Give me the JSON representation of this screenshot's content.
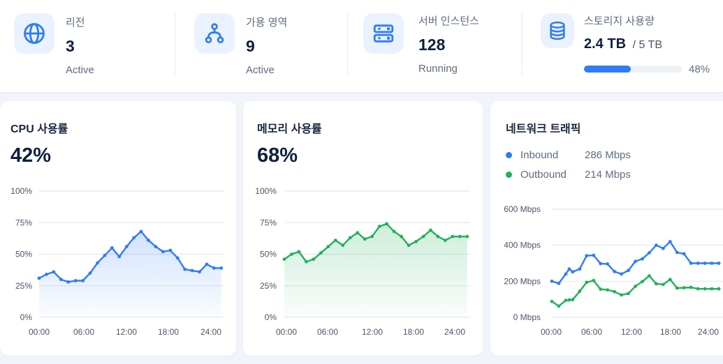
{
  "summary": {
    "region": {
      "label": "리전",
      "value": "3",
      "sub": "Active",
      "icon": "globe-icon"
    },
    "availability_zone": {
      "label": "가용 영역",
      "value": "9",
      "sub": "Active",
      "icon": "network-nodes-icon"
    },
    "server_instances": {
      "label": "서버 인스턴스",
      "value": "128",
      "sub": "Running",
      "icon": "server-icon"
    },
    "storage": {
      "label": "스토리지 사용량",
      "used": "2.4 TB",
      "total": "/ 5 TB",
      "percent_label": "48%",
      "percent": 48,
      "icon": "database-icon"
    }
  },
  "colors": {
    "accent_blue": "#2f7cf6",
    "accent_green": "#22b05a",
    "icon_bg": "#eaf2ff"
  },
  "cpu": {
    "title": "CPU 사용률",
    "value": "42%"
  },
  "memory": {
    "title": "메모리 사용률",
    "value": "68%"
  },
  "network": {
    "title": "네트워크 트래픽",
    "legend": [
      {
        "name": "Inbound",
        "value": "286 Mbps",
        "color": "#2f7cf6"
      },
      {
        "name": "Outbound",
        "value": "214 Mbps",
        "color": "#22b05a"
      }
    ]
  },
  "chart_data": [
    {
      "type": "area",
      "title": "CPU 사용률",
      "x": [
        0,
        1,
        2,
        3,
        4,
        5,
        6,
        7,
        8,
        9,
        10,
        11,
        12,
        13,
        14,
        15,
        16,
        17,
        18,
        19,
        20,
        21,
        22,
        23,
        24,
        25
      ],
      "x_ticks": [
        "00:00",
        "06:00",
        "12:00",
        "18:00",
        "24:00"
      ],
      "y_ticks": [
        "0%",
        "25%",
        "50%",
        "75%",
        "100%"
      ],
      "ylim": [
        0,
        100
      ],
      "series": [
        {
          "name": "CPU",
          "color": "#2f7cf6",
          "values": [
            31,
            34,
            36,
            30,
            28,
            29,
            29,
            35,
            43,
            49,
            55,
            48,
            56,
            63,
            68,
            61,
            56,
            52,
            53,
            47,
            38,
            37,
            36,
            42,
            39,
            39
          ]
        }
      ]
    },
    {
      "type": "area",
      "title": "메모리 사용률",
      "x": [
        0,
        1,
        2,
        3,
        4,
        5,
        6,
        7,
        8,
        9,
        10,
        11,
        12,
        13,
        14,
        15,
        16,
        17,
        18,
        19,
        20,
        21,
        22,
        23,
        24,
        25
      ],
      "x_ticks": [
        "00:00",
        "06:00",
        "12:00",
        "18:00",
        "24:00"
      ],
      "y_ticks": [
        "0%",
        "25%",
        "50%",
        "75%",
        "100%"
      ],
      "ylim": [
        0,
        100
      ],
      "series": [
        {
          "name": "Memory",
          "color": "#22b05a",
          "values": [
            46,
            50,
            52,
            44,
            46,
            51,
            56,
            61,
            57,
            63,
            67,
            62,
            64,
            72,
            74,
            68,
            64,
            57,
            60,
            64,
            69,
            64,
            61,
            64,
            64,
            64
          ]
        }
      ]
    },
    {
      "type": "line",
      "title": "네트워크 트래픽",
      "x": [
        0,
        1,
        2,
        2.5,
        3,
        4,
        5,
        6,
        7,
        8,
        9,
        10,
        11,
        12,
        13,
        14,
        15,
        16,
        17,
        18,
        19,
        20,
        21,
        22,
        23,
        24
      ],
      "x_ticks": [
        "00:00",
        "06:00",
        "12:00",
        "18:00",
        "24:00"
      ],
      "y_ticks": [
        "0 Mbps",
        "200 Mbps",
        "400 Mbps",
        "600 Mbps"
      ],
      "ylim": [
        0,
        600
      ],
      "series": [
        {
          "name": "Inbound",
          "color": "#2f7cf6",
          "values": [
            200,
            188,
            240,
            268,
            252,
            268,
            342,
            344,
            298,
            296,
            254,
            240,
            260,
            310,
            324,
            358,
            400,
            382,
            420,
            360,
            352,
            300,
            300,
            300,
            300,
            300
          ]
        },
        {
          "name": "Outbound",
          "color": "#22b05a",
          "values": [
            88,
            62,
            94,
            96,
            98,
            144,
            194,
            204,
            156,
            152,
            142,
            124,
            132,
            172,
            198,
            230,
            186,
            182,
            210,
            162,
            164,
            166,
            158,
            158,
            158,
            158
          ]
        }
      ]
    }
  ]
}
